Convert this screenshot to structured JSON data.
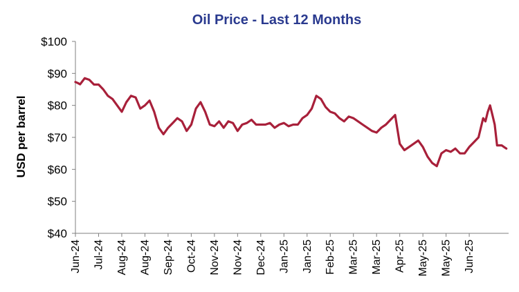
{
  "colors": {
    "line": "#a8203a",
    "title": "#2a3a8f",
    "axis": "#7f7f7f",
    "grid": "#d9d9d9"
  },
  "chart_data": {
    "type": "line",
    "title": "Oil Price - Last 12 Months",
    "ylabel": "USD per barrel",
    "xlabel": "",
    "ylim": [
      40,
      100
    ],
    "yticks": [
      40,
      50,
      60,
      70,
      80,
      90,
      100
    ],
    "ytick_labels": [
      "$40",
      "$50",
      "$60",
      "$70",
      "$80",
      "$90",
      "$100"
    ],
    "x_tick_labels": [
      "Jun-24",
      "Jul-24",
      "Aug-24",
      "Aug-24",
      "Sep-24",
      "Oct-24",
      "Nov-24",
      "Nov-24",
      "Dec-24",
      "Jan-25",
      "Jan-25",
      "Feb-25",
      "Mar-25",
      "Mar-25",
      "Apr-25",
      "May-25",
      "May-25",
      "Jun-25"
    ],
    "xlim": [
      0,
      18.7
    ],
    "grid": false,
    "legend": "none",
    "series": [
      {
        "name": "",
        "x": [
          0,
          0.1,
          0.2,
          0.4,
          0.6,
          0.8,
          1.0,
          1.2,
          1.4,
          1.6,
          1.8,
          2.0,
          2.2,
          2.4,
          2.6,
          2.8,
          3.0,
          3.2,
          3.4,
          3.6,
          3.8,
          4.0,
          4.2,
          4.4,
          4.6,
          4.8,
          5.0,
          5.2,
          5.4,
          5.6,
          5.8,
          6.0,
          6.2,
          6.4,
          6.6,
          6.8,
          7.0,
          7.2,
          7.4,
          7.6,
          7.8,
          8.0,
          8.2,
          8.4,
          8.6,
          8.8,
          9.0,
          9.2,
          9.4,
          9.6,
          9.8,
          10.0,
          10.2,
          10.4,
          10.6,
          10.8,
          11.0,
          11.2,
          11.4,
          11.6,
          11.8,
          12.0,
          12.2,
          12.4,
          12.6,
          12.8,
          13.0,
          13.2,
          13.4,
          13.6,
          13.8,
          14.0,
          14.2,
          14.4,
          14.6,
          14.8,
          15.0,
          15.2,
          15.4,
          15.6,
          15.8,
          16.0,
          16.2,
          16.4,
          16.6,
          16.8,
          17.0,
          17.2,
          17.4,
          17.6,
          17.7,
          17.8,
          17.9,
          18.0,
          18.1,
          18.2,
          18.3,
          18.4,
          18.5,
          18.6
        ],
        "values": [
          87.3,
          87.0,
          86.6,
          88.5,
          88.0,
          86.5,
          86.5,
          85.0,
          83.0,
          82.0,
          80.0,
          78.0,
          81.0,
          83.0,
          82.5,
          79.0,
          80.0,
          81.5,
          78.0,
          73.0,
          71.0,
          73.0,
          74.5,
          76.0,
          75.0,
          72.0,
          74.0,
          79.0,
          81.0,
          78.0,
          74.0,
          73.5,
          75.0,
          73.0,
          75.0,
          74.5,
          72.0,
          74.0,
          74.5,
          75.5,
          74.0,
          74.0,
          74.0,
          74.5,
          73.0,
          74.0,
          74.5,
          73.5,
          74.0,
          74.0,
          76.0,
          77.0,
          79.0,
          83.0,
          82.0,
          79.5,
          78.0,
          77.5,
          76.0,
          75.0,
          76.5,
          76.0,
          75.0,
          74.0,
          73.0,
          72.0,
          71.5,
          73.0,
          74.0,
          75.5,
          77.0,
          68.0,
          66.0,
          67.0,
          68.0,
          69.0,
          67.0,
          64.0,
          62.0,
          61.0,
          65.0,
          66.0,
          65.5,
          66.5,
          65.0,
          65.0,
          67.0,
          68.5,
          70.0,
          76.0,
          75.0,
          78.0,
          80.0,
          77.0,
          74.0,
          67.5,
          67.5,
          67.5,
          67.0,
          66.5
        ]
      }
    ]
  }
}
